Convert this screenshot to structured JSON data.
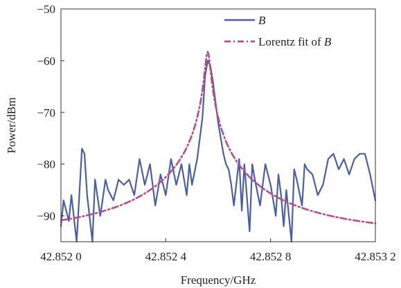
{
  "chart_data": {
    "type": "line",
    "title": "",
    "xlabel": "Frequency/GHz",
    "ylabel": "Power/dBm",
    "xlim": [
      42.852,
      42.8532
    ],
    "ylim": [
      -95,
      -50
    ],
    "x_ticks": [
      {
        "value": 42.852,
        "label": "42.852 0"
      },
      {
        "value": 42.8524,
        "label": "42.852 4"
      },
      {
        "value": 42.8528,
        "label": "42.852 8"
      },
      {
        "value": 42.8532,
        "label": "42.853 2"
      }
    ],
    "y_ticks": [
      {
        "value": -50,
        "label": "−50"
      },
      {
        "value": -60,
        "label": "−60"
      },
      {
        "value": -70,
        "label": "−70"
      },
      {
        "value": -80,
        "label": "−80"
      },
      {
        "value": -90,
        "label": "−90"
      }
    ],
    "grid": false,
    "legend_position": "top-right",
    "legend": [
      {
        "series": 0,
        "text": "B",
        "style": "italic"
      },
      {
        "series": 1,
        "prefix": "Lorentz fit of ",
        "text": "B",
        "style": "italic"
      }
    ],
    "series": [
      {
        "name": "B",
        "color": "#4a5ea8",
        "dash": "solid",
        "x": [
          42.852,
          42.85201,
          42.85203,
          42.85204,
          42.85206,
          42.85208,
          42.85209,
          42.8521,
          42.85212,
          42.85213,
          42.85215,
          42.85217,
          42.85218,
          42.8522,
          42.85222,
          42.85224,
          42.85226,
          42.85228,
          42.8523,
          42.85232,
          42.85234,
          42.85236,
          42.85238,
          42.8524,
          42.85242,
          42.85244,
          42.85246,
          42.85248,
          42.85249,
          42.8525,
          42.85252,
          42.85254,
          42.85255,
          42.85256,
          42.85257,
          42.85258,
          42.8526,
          42.85262,
          42.85263,
          42.85264,
          42.85265,
          42.85266,
          42.85268,
          42.85269,
          42.8527,
          42.85272,
          42.85273,
          42.85274,
          42.85276,
          42.85278,
          42.8528,
          42.85282,
          42.85283,
          42.85284,
          42.85285,
          42.85286,
          42.85288,
          42.85289,
          42.8529,
          42.85292,
          42.85293,
          42.85294,
          42.85296,
          42.85298,
          42.853,
          42.85302,
          42.85304,
          42.85306,
          42.85308,
          42.8531,
          42.85312,
          42.85314,
          42.85316,
          42.85318,
          42.8532
        ],
        "y": [
          -92,
          -87,
          -91,
          -86,
          -95,
          -77,
          -78,
          -86,
          -95,
          -83,
          -90,
          -83,
          -85,
          -87,
          -83,
          -84,
          -83,
          -86,
          -79,
          -84,
          -80,
          -88,
          -82,
          -86,
          -79,
          -84,
          -80,
          -86,
          -80,
          -84,
          -79,
          -71,
          -63,
          -60,
          -61,
          -64,
          -72,
          -78,
          -80,
          -81,
          -84,
          -88,
          -79,
          -89,
          -80,
          -93,
          -80,
          -83,
          -88,
          -80,
          -84,
          -90,
          -82,
          -86,
          -92,
          -85,
          -95,
          -81,
          -83,
          -88,
          -80,
          -81,
          -82,
          -86,
          -84,
          -79,
          -78,
          -81,
          -79,
          -82,
          -79,
          -78,
          -78,
          -82,
          -87
        ]
      },
      {
        "name": "Lorentz fit of B",
        "color": "#b94b8c",
        "dash": "dashdot",
        "lorentz": {
          "x0": 42.85256,
          "gamma": 9.5e-06,
          "amplitude_linear": 14900,
          "floor_linear": 3.9
        }
      }
    ]
  }
}
